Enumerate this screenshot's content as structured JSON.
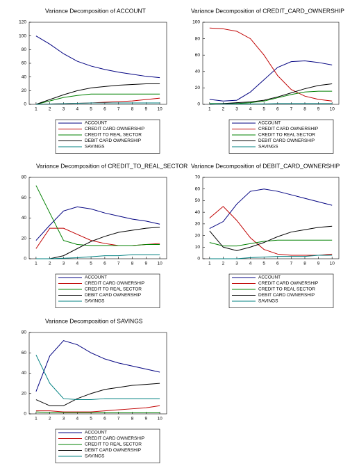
{
  "chart_data": [
    {
      "type": "line",
      "title": "Variance Decomposition of ACCOUNT",
      "categories": [
        "1",
        "2",
        "3",
        "4",
        "5",
        "6",
        "7",
        "8",
        "9",
        "10"
      ],
      "ylim": [
        0,
        120
      ],
      "yticks": [
        0,
        20,
        40,
        60,
        80,
        100,
        120
      ],
      "series": [
        {
          "name": "ACCOUNT",
          "color": "#000080",
          "values": [
            100,
            88,
            74,
            63,
            56,
            51,
            47,
            44,
            41,
            39
          ]
        },
        {
          "name": "CREDIT CARD OWNERSHIP",
          "color": "#c00000",
          "values": [
            0,
            0.5,
            1,
            1.5,
            2,
            3,
            4,
            5,
            7,
            9
          ]
        },
        {
          "name": "CREDIT TO REAL SECTOR",
          "color": "#008000",
          "values": [
            0,
            5,
            10,
            13,
            15,
            15,
            15,
            15,
            15,
            15
          ]
        },
        {
          "name": "DEBIT CARD OWNERSHIP",
          "color": "#000000",
          "values": [
            0,
            7,
            14,
            20,
            24,
            26,
            28,
            29,
            30,
            30
          ]
        },
        {
          "name": "SAVINGS",
          "color": "#008080",
          "values": [
            0,
            0.5,
            1,
            1.5,
            2,
            2,
            2,
            2,
            2,
            2
          ]
        }
      ]
    },
    {
      "type": "line",
      "title": "Variance Decomposition of CREDIT_CARD_OWNERSHIP",
      "categories": [
        "1",
        "2",
        "3",
        "4",
        "5",
        "6",
        "7",
        "8",
        "9",
        "10"
      ],
      "ylim": [
        0,
        100
      ],
      "yticks": [
        0,
        20,
        40,
        60,
        80,
        100
      ],
      "series": [
        {
          "name": "ACCOUNT",
          "color": "#000080",
          "values": [
            6,
            4,
            5,
            15,
            30,
            45,
            52,
            53,
            51,
            48
          ]
        },
        {
          "name": "CREDIT CARD OWNERSHIP",
          "color": "#c00000",
          "values": [
            93,
            92,
            89,
            80,
            60,
            35,
            18,
            10,
            6,
            4
          ]
        },
        {
          "name": "CREDIT TO REAL SECTOR",
          "color": "#008000",
          "values": [
            1,
            1,
            1,
            2,
            4,
            8,
            12,
            15,
            16,
            16
          ]
        },
        {
          "name": "DEBIT CARD OWNERSHIP",
          "color": "#000000",
          "values": [
            0,
            1,
            2,
            3,
            5,
            9,
            14,
            19,
            23,
            25
          ]
        },
        {
          "name": "SAVINGS",
          "color": "#008080",
          "values": [
            0.5,
            0.5,
            0.5,
            0.5,
            0.5,
            1,
            1,
            1,
            1,
            1
          ]
        }
      ]
    },
    {
      "type": "line",
      "title": "Variance Decomposition of CREDIT_TO_REAL_SECTOR",
      "categories": [
        "1",
        "2",
        "3",
        "4",
        "5",
        "6",
        "7",
        "8",
        "9",
        "10"
      ],
      "ylim": [
        0,
        80
      ],
      "yticks": [
        0,
        20,
        40,
        60,
        80
      ],
      "series": [
        {
          "name": "ACCOUNT",
          "color": "#000080",
          "values": [
            18,
            33,
            47,
            51,
            49,
            45,
            42,
            39,
            37,
            34
          ]
        },
        {
          "name": "CREDIT CARD OWNERSHIP",
          "color": "#c00000",
          "values": [
            10,
            30,
            30,
            24,
            18,
            15,
            13,
            13,
            14,
            15
          ]
        },
        {
          "name": "CREDIT TO REAL SECTOR",
          "color": "#008000",
          "values": [
            72,
            45,
            18,
            14,
            13,
            13,
            13,
            13,
            14,
            14
          ]
        },
        {
          "name": "DEBIT CARD OWNERSHIP",
          "color": "#000000",
          "values": [
            0,
            0,
            3,
            10,
            17,
            22,
            26,
            28,
            30,
            31
          ]
        },
        {
          "name": "SAVINGS",
          "color": "#008080",
          "values": [
            0,
            0,
            0.5,
            1,
            2,
            3,
            3,
            4,
            4,
            4
          ]
        }
      ]
    },
    {
      "type": "line",
      "title": "Variance Decomposition of DEBIT_CARD_OWNERSHIP",
      "categories": [
        "1",
        "2",
        "3",
        "4",
        "5",
        "6",
        "7",
        "8",
        "9",
        "10"
      ],
      "ylim": [
        0,
        70
      ],
      "yticks": [
        0,
        10,
        20,
        30,
        40,
        50,
        60,
        70
      ],
      "series": [
        {
          "name": "ACCOUNT",
          "color": "#000080",
          "values": [
            26,
            32,
            47,
            58,
            60,
            58,
            55,
            52,
            49,
            46
          ]
        },
        {
          "name": "CREDIT CARD OWNERSHIP",
          "color": "#c00000",
          "values": [
            35,
            45,
            33,
            18,
            8,
            4,
            3,
            3,
            3,
            4
          ]
        },
        {
          "name": "CREDIT TO REAL SECTOR",
          "color": "#008000",
          "values": [
            14,
            11,
            11,
            13,
            15,
            16,
            16,
            16,
            16,
            16
          ]
        },
        {
          "name": "DEBIT CARD OWNERSHIP",
          "color": "#000000",
          "values": [
            24,
            10,
            7,
            10,
            14,
            19,
            23,
            25,
            27,
            28
          ]
        },
        {
          "name": "SAVINGS",
          "color": "#008080",
          "values": [
            0,
            0,
            0,
            1,
            1.5,
            2,
            2,
            2,
            3,
            3
          ]
        }
      ]
    },
    {
      "type": "line",
      "title": "Variance Decomposition of SAVINGS",
      "categories": [
        "1",
        "2",
        "3",
        "4",
        "5",
        "6",
        "7",
        "8",
        "9",
        "10"
      ],
      "ylim": [
        0,
        80
      ],
      "yticks": [
        0,
        20,
        40,
        60,
        80
      ],
      "series": [
        {
          "name": "ACCOUNT",
          "color": "#000080",
          "values": [
            22,
            57,
            72,
            68,
            60,
            54,
            50,
            47,
            44,
            41
          ]
        },
        {
          "name": "CREDIT CARD OWNERSHIP",
          "color": "#c00000",
          "values": [
            3,
            3,
            2,
            2,
            2,
            3,
            4,
            5,
            6,
            8
          ]
        },
        {
          "name": "CREDIT TO REAL SECTOR",
          "color": "#008000",
          "values": [
            2,
            1,
            1,
            1,
            1,
            1,
            1,
            1,
            1,
            1
          ]
        },
        {
          "name": "DEBIT CARD OWNERSHIP",
          "color": "#000000",
          "values": [
            14,
            8,
            8,
            15,
            20,
            24,
            26,
            28,
            29,
            30
          ]
        },
        {
          "name": "SAVINGS",
          "color": "#008080",
          "values": [
            58,
            30,
            15,
            14,
            14,
            15,
            15,
            15,
            15,
            15
          ]
        }
      ]
    }
  ]
}
